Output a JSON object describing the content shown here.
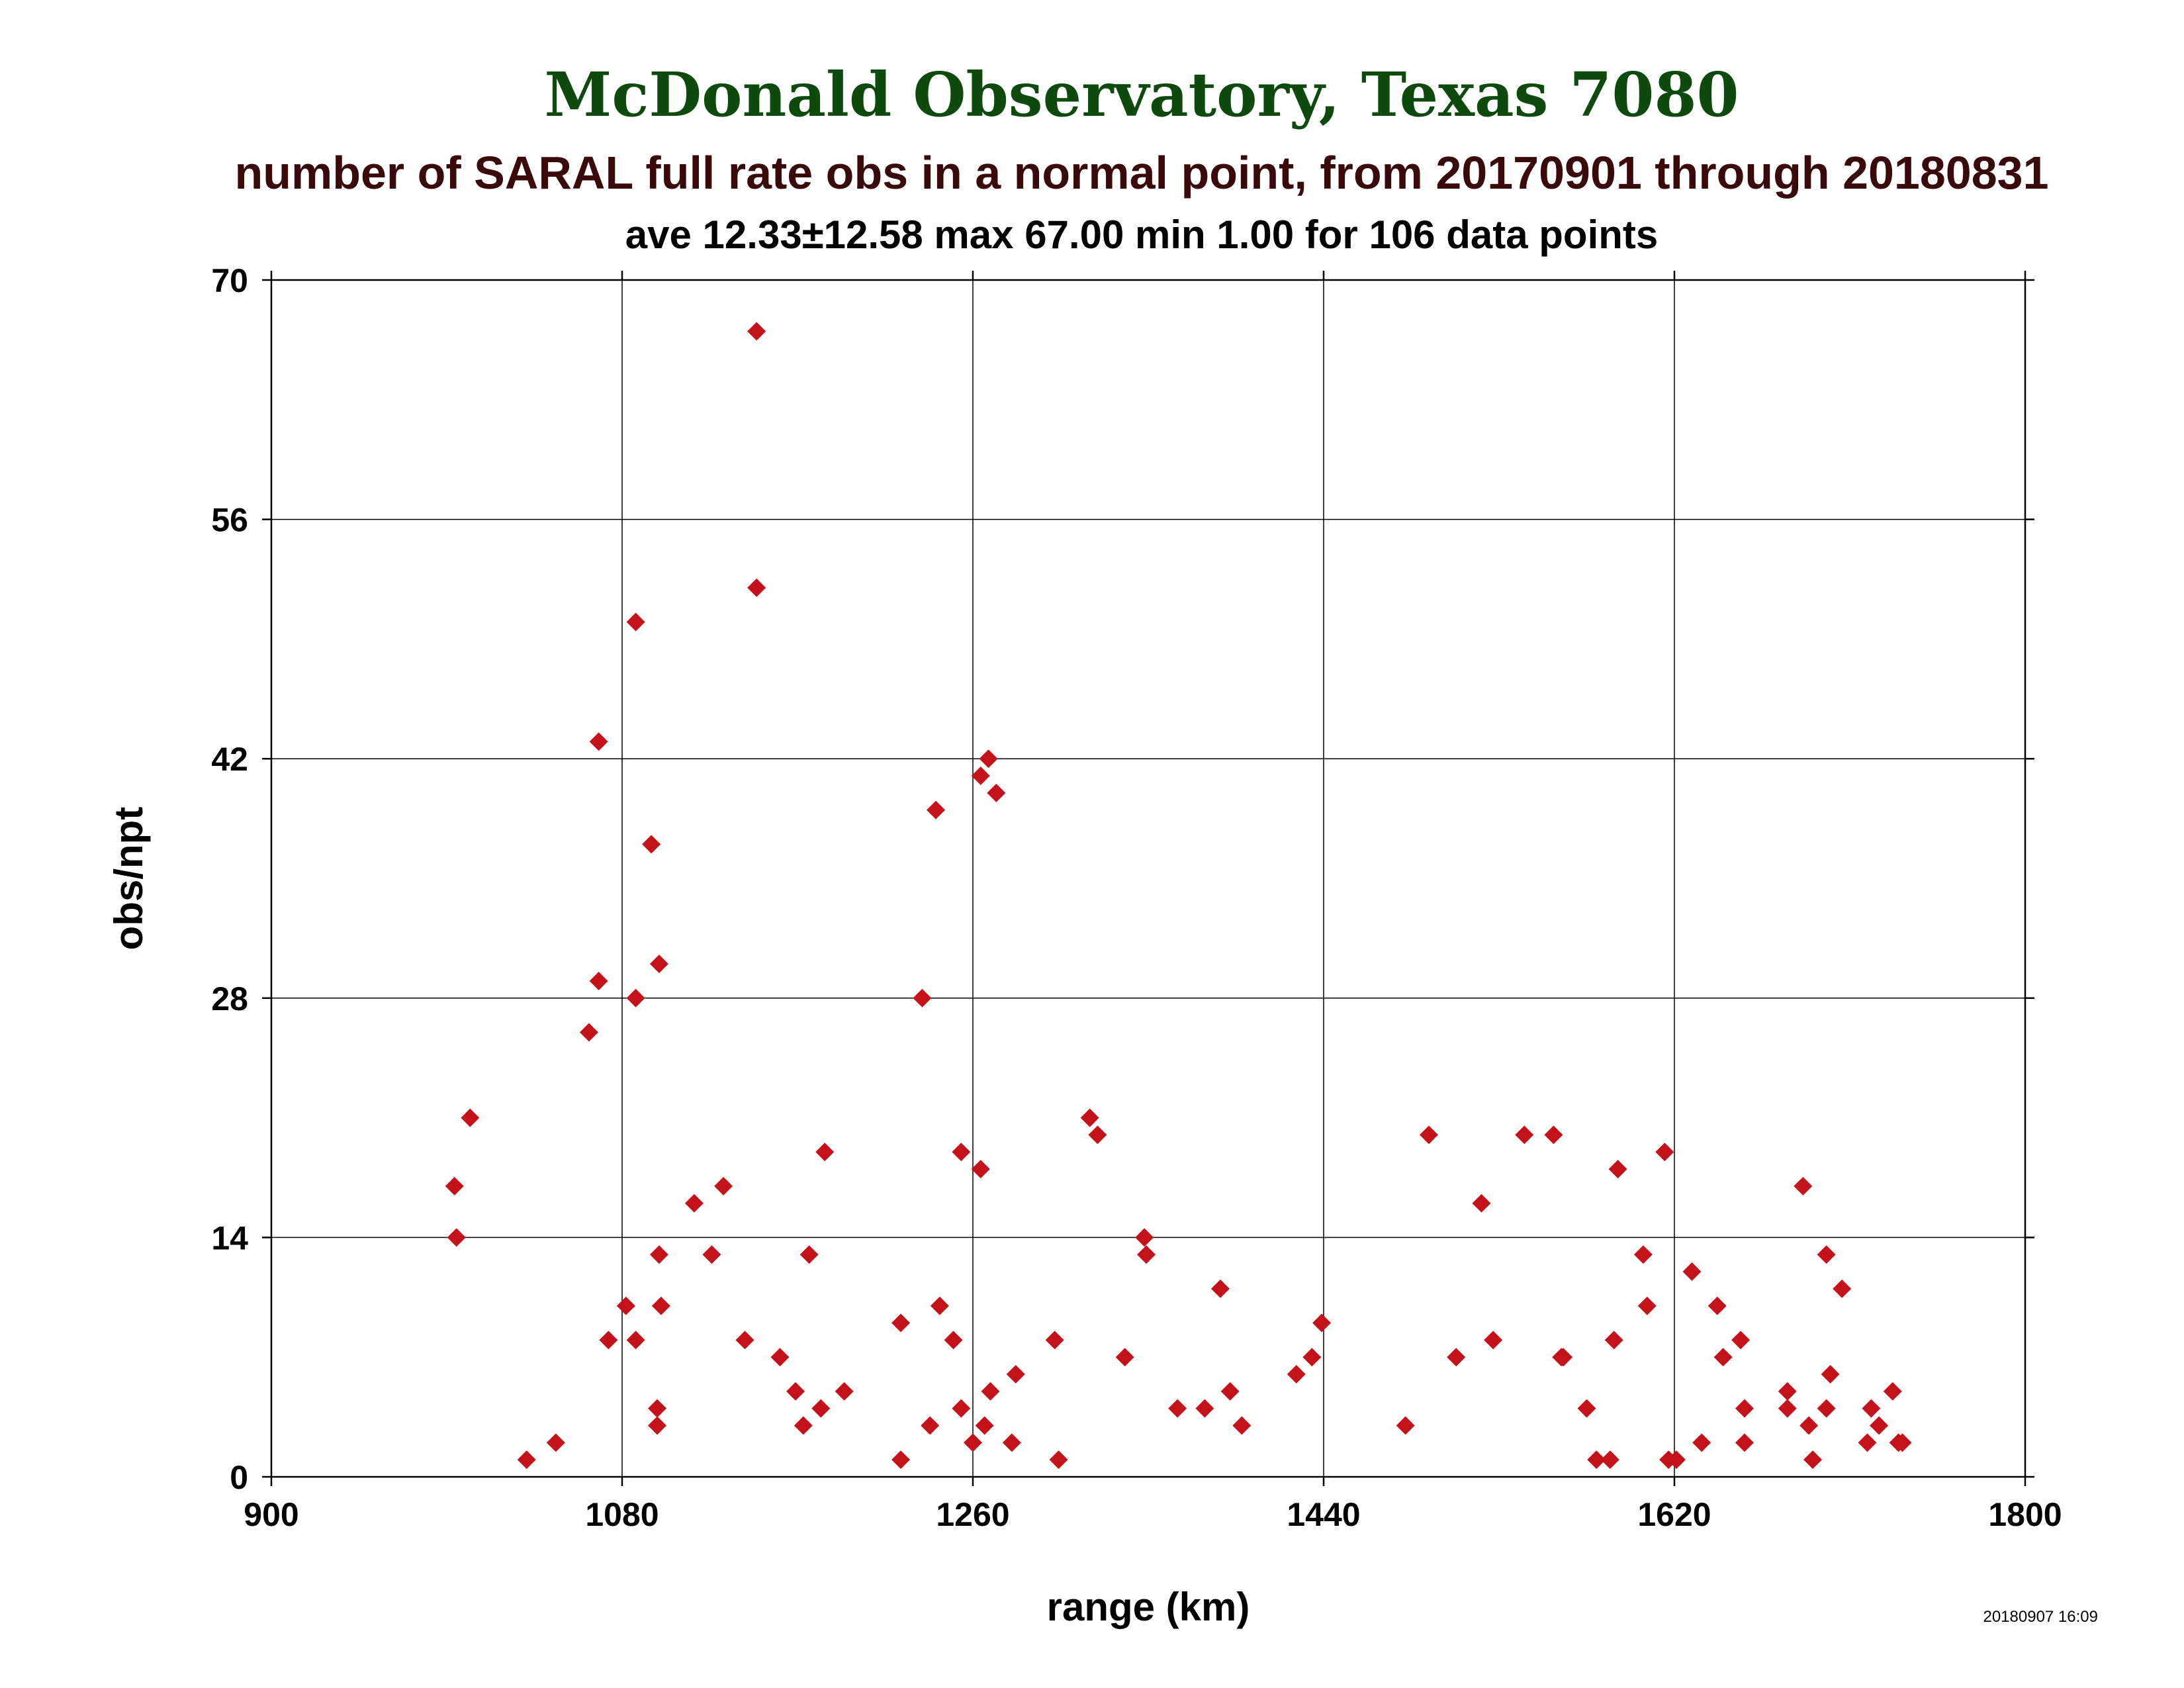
{
  "colors": {
    "title": "#0e4a0e",
    "subtitle": "#3a0a0a",
    "stats": "#000000",
    "marker": "#c4121a",
    "grid": "#000000"
  },
  "header": {
    "title": "McDonald Observatory, Texas 7080",
    "subtitle": "number of SARAL full rate obs in a normal point, from 20170901 through 20180831",
    "stats": "ave 12.33±12.58 max 67.00 min 1.00 for 106 data points"
  },
  "footer": {
    "timestamp": "20180907 16:09"
  },
  "chart_data": {
    "type": "scatter",
    "xlabel": "range (km)",
    "ylabel": "obs/npt",
    "xlim": [
      900,
      1800
    ],
    "ylim": [
      0,
      70
    ],
    "xticks": [
      900,
      1080,
      1260,
      1440,
      1620,
      1800
    ],
    "yticks": [
      0,
      14,
      28,
      42,
      56,
      70
    ],
    "grid": true,
    "marker": "diamond",
    "points": [
      [
        994,
        17
      ],
      [
        995,
        14
      ],
      [
        1002,
        21
      ],
      [
        1031,
        1
      ],
      [
        1046,
        2
      ],
      [
        1063,
        26
      ],
      [
        1068,
        43
      ],
      [
        1068,
        29
      ],
      [
        1073,
        8
      ],
      [
        1082,
        10
      ],
      [
        1087,
        50
      ],
      [
        1087,
        28
      ],
      [
        1087,
        8
      ],
      [
        1095,
        37
      ],
      [
        1098,
        4
      ],
      [
        1098,
        3
      ],
      [
        1099,
        30
      ],
      [
        1099,
        13
      ],
      [
        1100,
        10
      ],
      [
        1117,
        16
      ],
      [
        1126,
        13
      ],
      [
        1132,
        17
      ],
      [
        1143,
        8
      ],
      [
        1149,
        67
      ],
      [
        1149,
        52
      ],
      [
        1161,
        7
      ],
      [
        1169,
        5
      ],
      [
        1173,
        3
      ],
      [
        1176,
        13
      ],
      [
        1182,
        4
      ],
      [
        1184,
        19
      ],
      [
        1194,
        5
      ],
      [
        1223,
        9
      ],
      [
        1223,
        1
      ],
      [
        1234,
        28
      ],
      [
        1238,
        3
      ],
      [
        1241,
        39
      ],
      [
        1243,
        10
      ],
      [
        1250,
        8
      ],
      [
        1254,
        19
      ],
      [
        1254,
        4
      ],
      [
        1260,
        2
      ],
      [
        1264,
        41
      ],
      [
        1264,
        18
      ],
      [
        1266,
        3
      ],
      [
        1268,
        42
      ],
      [
        1269,
        5
      ],
      [
        1272,
        40
      ],
      [
        1280,
        2
      ],
      [
        1282,
        6
      ],
      [
        1302,
        8
      ],
      [
        1304,
        1
      ],
      [
        1320,
        21
      ],
      [
        1324,
        20
      ],
      [
        1338,
        7
      ],
      [
        1348,
        14
      ],
      [
        1349,
        13
      ],
      [
        1365,
        4
      ],
      [
        1379,
        4
      ],
      [
        1387,
        11
      ],
      [
        1392,
        5
      ],
      [
        1398,
        3
      ],
      [
        1426,
        6
      ],
      [
        1434,
        7
      ],
      [
        1439,
        9
      ],
      [
        1482,
        3
      ],
      [
        1494,
        20
      ],
      [
        1508,
        7
      ],
      [
        1521,
        16
      ],
      [
        1527,
        8
      ],
      [
        1543,
        20
      ],
      [
        1558,
        20
      ],
      [
        1562,
        7
      ],
      [
        1563,
        7
      ],
      [
        1575,
        4
      ],
      [
        1580,
        1
      ],
      [
        1587,
        1
      ],
      [
        1589,
        8
      ],
      [
        1591,
        18
      ],
      [
        1604,
        13
      ],
      [
        1606,
        10
      ],
      [
        1615,
        19
      ],
      [
        1617,
        1
      ],
      [
        1621,
        1
      ],
      [
        1629,
        12
      ],
      [
        1634,
        2
      ],
      [
        1642,
        10
      ],
      [
        1645,
        7
      ],
      [
        1654,
        8
      ],
      [
        1656,
        4
      ],
      [
        1656,
        2
      ],
      [
        1678,
        5
      ],
      [
        1678,
        4
      ],
      [
        1686,
        17
      ],
      [
        1689,
        3
      ],
      [
        1691,
        1
      ],
      [
        1698,
        13
      ],
      [
        1698,
        4
      ],
      [
        1700,
        6
      ],
      [
        1706,
        11
      ],
      [
        1719,
        2
      ],
      [
        1721,
        4
      ],
      [
        1725,
        3
      ],
      [
        1732,
        5
      ],
      [
        1735,
        2
      ],
      [
        1737,
        2
      ]
    ]
  }
}
